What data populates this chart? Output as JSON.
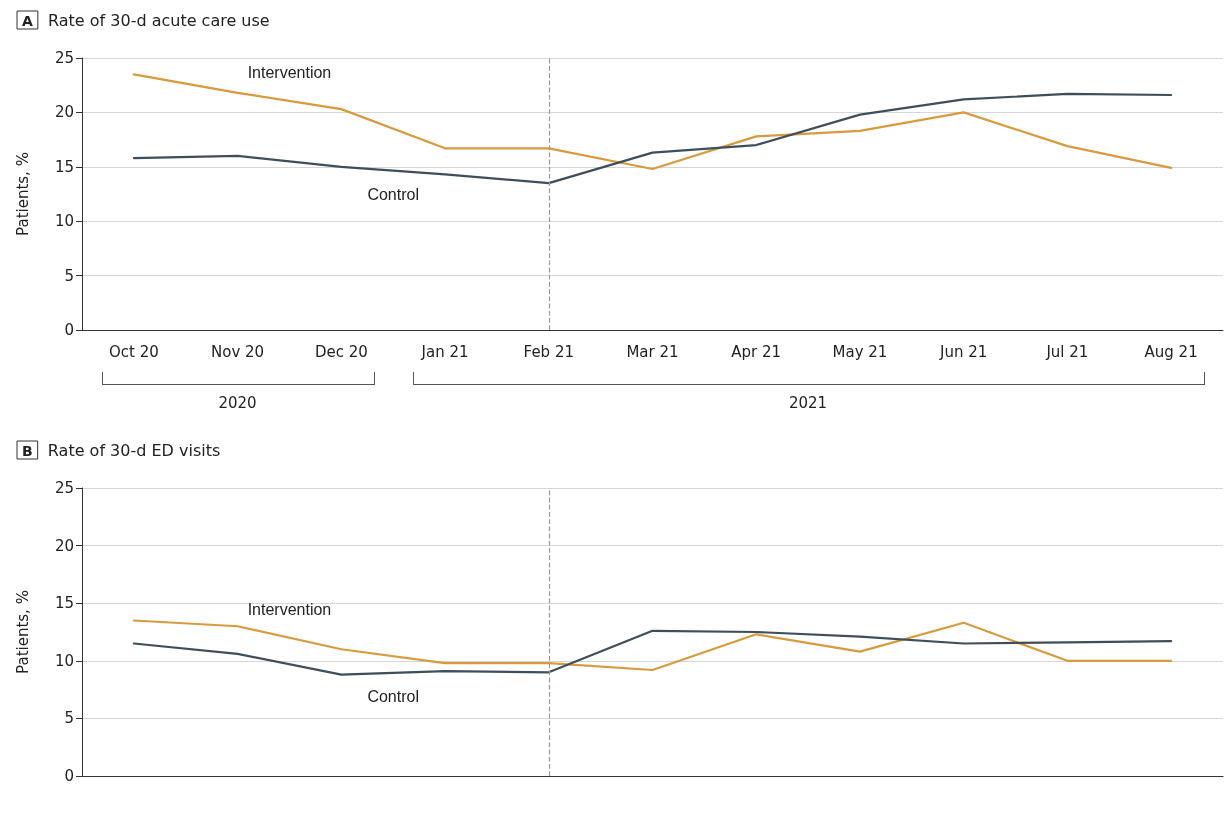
{
  "chart_data": [
    {
      "type": "line",
      "title": "Rate of 30-d acute care use",
      "ylabel": "Patients, %",
      "categories": [
        "Oct 20",
        "Nov 20",
        "Dec 20",
        "Jan 21",
        "Feb 21",
        "Mar 21",
        "Apr 21",
        "May 21",
        "Jun 21",
        "Jul 21",
        "Aug 21"
      ],
      "series": [
        {
          "name": "Intervention",
          "color": "#d89a3c",
          "values": [
            23.5,
            21.8,
            20.3,
            16.7,
            16.7,
            14.8,
            17.8,
            18.3,
            20.0,
            16.9,
            14.9
          ]
        },
        {
          "name": "Control",
          "color": "#3e4f5b",
          "values": [
            15.8,
            16.0,
            15.0,
            14.3,
            13.5,
            16.3,
            17.0,
            19.8,
            21.2,
            21.7,
            21.6
          ]
        }
      ],
      "ylim": [
        0,
        25
      ],
      "yticks": [
        0,
        5,
        10,
        15,
        20,
        25
      ],
      "grid": "y",
      "legend": false,
      "marker": "none",
      "line_style": "solid",
      "ref_lines": [
        {
          "axis": "x",
          "value": "Feb 21",
          "color": "#999999",
          "line_style": "dashed"
        }
      ],
      "annotations": [
        "A",
        "2020",
        "2021"
      ]
    },
    {
      "type": "line",
      "title": "Rate of 30-d ED visits",
      "ylabel": "Patients, %",
      "categories": [
        "Oct 20",
        "Nov 20",
        "Dec 20",
        "Jan 21",
        "Feb 21",
        "Mar 21",
        "Apr 21",
        "May 21",
        "Jun 21",
        "Jul 21",
        "Aug 21"
      ],
      "series": [
        {
          "name": "Intervention",
          "color": "#d89a3c",
          "values": [
            13.5,
            13.0,
            11.0,
            9.8,
            9.8,
            9.2,
            12.3,
            10.8,
            13.3,
            10.0,
            10.0
          ]
        },
        {
          "name": "Control",
          "color": "#3e4f5b",
          "values": [
            11.5,
            10.6,
            8.8,
            9.1,
            9.0,
            12.6,
            12.5,
            12.1,
            11.5,
            11.6,
            11.7
          ]
        }
      ],
      "ylim": [
        0,
        25
      ],
      "yticks": [
        0,
        5,
        10,
        15,
        20,
        25
      ],
      "grid": "y",
      "legend": false,
      "marker": "none",
      "line_style": "solid",
      "tick_labels": "y",
      "ref_lines": [
        {
          "axis": "x",
          "value": "Feb 21",
          "color": "#999999",
          "line_style": "dashed"
        }
      ],
      "annotations": [
        "B"
      ]
    }
  ]
}
